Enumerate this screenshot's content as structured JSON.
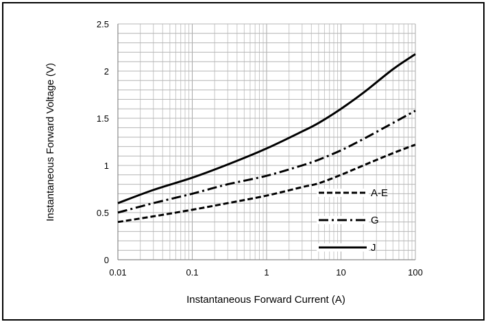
{
  "chart_data": {
    "type": "line",
    "xscale": "log",
    "xlim": [
      0.01,
      100
    ],
    "ylim": [
      0,
      2.5
    ],
    "xlabel": "Instantaneous Forward Current (A)",
    "ylabel": "Instantaneous Forward Voltage (V)",
    "x_ticks": [
      "0.01",
      "0.1",
      "1",
      "10",
      "100"
    ],
    "y_ticks": [
      "0",
      "0.5",
      "1",
      "1.5",
      "2",
      "2.5"
    ],
    "grid": true,
    "legend_position": "right-inside",
    "series": [
      {
        "name": "A-E",
        "style": "dashed",
        "x": [
          0.01,
          0.03,
          0.1,
          0.3,
          1,
          3,
          5,
          10,
          20,
          50,
          100
        ],
        "y": [
          0.4,
          0.46,
          0.53,
          0.6,
          0.68,
          0.77,
          0.81,
          0.9,
          1.0,
          1.13,
          1.22
        ]
      },
      {
        "name": "G",
        "style": "dash-dot",
        "x": [
          0.01,
          0.03,
          0.1,
          0.3,
          1,
          3,
          5,
          10,
          20,
          50,
          100
        ],
        "y": [
          0.5,
          0.6,
          0.7,
          0.8,
          0.89,
          1.0,
          1.06,
          1.16,
          1.28,
          1.45,
          1.58
        ]
      },
      {
        "name": "J",
        "style": "solid",
        "x": [
          0.01,
          0.03,
          0.1,
          0.3,
          1,
          3,
          5,
          10,
          20,
          50,
          100
        ],
        "y": [
          0.6,
          0.74,
          0.87,
          1.01,
          1.18,
          1.36,
          1.45,
          1.6,
          1.77,
          2.02,
          2.18
        ]
      }
    ]
  }
}
